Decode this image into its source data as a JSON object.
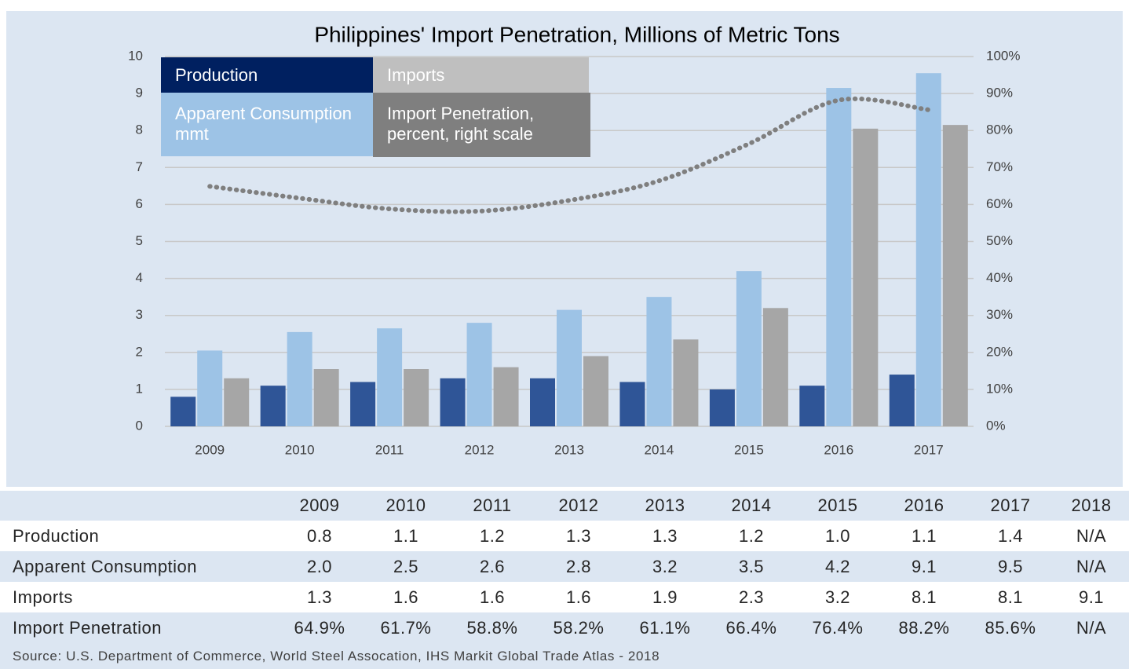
{
  "chart_data": {
    "type": "bar",
    "title": "Philippines' Import Penetration, Millions of Metric Tons",
    "categories": [
      "2009",
      "2010",
      "2011",
      "2012",
      "2013",
      "2014",
      "2015",
      "2016",
      "2017"
    ],
    "series": [
      {
        "name": "Production",
        "color": "#2f5597",
        "values": [
          0.8,
          1.1,
          1.2,
          1.3,
          1.3,
          1.2,
          1.0,
          1.1,
          1.4
        ]
      },
      {
        "name": "Apparent Consumption mmt",
        "color": "#9dc3e6",
        "values": [
          2.05,
          2.55,
          2.65,
          2.8,
          3.15,
          3.5,
          4.2,
          9.15,
          9.55
        ]
      },
      {
        "name": "Imports",
        "color": "#a6a6a6",
        "values": [
          1.3,
          1.55,
          1.55,
          1.6,
          1.9,
          2.35,
          3.2,
          8.05,
          8.15
        ]
      },
      {
        "name": "Import Penetration, percent, right scale",
        "color": "#7f7f7f",
        "type": "line",
        "axis": "y2",
        "values": [
          64.9,
          61.7,
          58.8,
          58.2,
          61.1,
          66.4,
          76.4,
          88.2,
          85.6
        ]
      }
    ],
    "ylim": [
      0,
      10
    ],
    "yticks": [
      0,
      1,
      2,
      3,
      4,
      5,
      6,
      7,
      8,
      9,
      10
    ],
    "y2lim": [
      0,
      100
    ],
    "y2ticks": [
      {
        "value": 0,
        "label": "0%"
      },
      {
        "value": 10,
        "label": "10%"
      },
      {
        "value": 20,
        "label": "20%"
      },
      {
        "value": 30,
        "label": "30%"
      },
      {
        "value": 40,
        "label": "40%"
      },
      {
        "value": 50,
        "label": "50%"
      },
      {
        "value": 60,
        "label": "60%"
      },
      {
        "value": 70,
        "label": "70%"
      },
      {
        "value": 80,
        "label": "80%"
      },
      {
        "value": 90,
        "label": "90%"
      },
      {
        "value": 100,
        "label": "100%"
      }
    ],
    "grid": true,
    "legend": "top-left"
  },
  "table": {
    "columns": [
      "2009",
      "2010",
      "2011",
      "2012",
      "2013",
      "2014",
      "2015",
      "2016",
      "2017",
      "2018"
    ],
    "rows": [
      {
        "label": "Production",
        "cells": [
          "0.8",
          "1.1",
          "1.2",
          "1.3",
          "1.3",
          "1.2",
          "1.0",
          "1.1",
          "1.4",
          "N/A"
        ]
      },
      {
        "label": "Apparent Consumption",
        "cells": [
          "2.0",
          "2.5",
          "2.6",
          "2.8",
          "3.2",
          "3.5",
          "4.2",
          "9.1",
          "9.5",
          "N/A"
        ]
      },
      {
        "label": "Imports",
        "cells": [
          "1.3",
          "1.6",
          "1.6",
          "1.6",
          "1.9",
          "2.3",
          "3.2",
          "8.1",
          "8.1",
          "9.1"
        ]
      },
      {
        "label": "Import Penetration",
        "cells": [
          "64.9%",
          "61.7%",
          "58.8%",
          "58.2%",
          "61.1%",
          "66.4%",
          "76.4%",
          "88.2%",
          "85.6%",
          "N/A"
        ]
      }
    ],
    "source": "Source: U.S. Department of Commerce, World Steel Assocation, IHS Markit Global Trade Atlas -  2018"
  }
}
